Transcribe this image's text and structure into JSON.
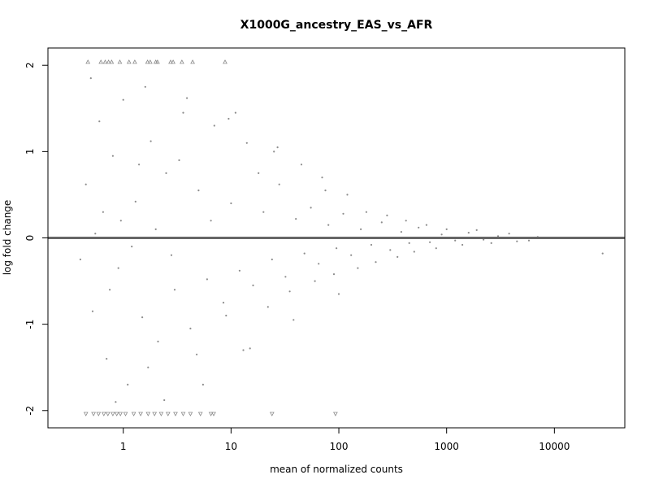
{
  "chart_data": {
    "type": "scatter",
    "title": "X1000G_ancestry_EAS_vs_AFR",
    "xlabel": "mean of normalized counts",
    "ylabel": "log fold change",
    "x_scale": "log",
    "xlim": [
      0.2,
      45000
    ],
    "ylim": [
      -2.2,
      2.2
    ],
    "x_ticks": [
      {
        "value": 1,
        "label": "1"
      },
      {
        "value": 10,
        "label": "10"
      },
      {
        "value": 100,
        "label": "100"
      },
      {
        "value": 1000,
        "label": "1000"
      },
      {
        "value": 10000,
        "label": "10000"
      }
    ],
    "y_ticks": [
      {
        "value": -2,
        "label": "-2"
      },
      {
        "value": -1,
        "label": "-1"
      },
      {
        "value": 0,
        "label": "0"
      },
      {
        "value": 1,
        "label": "1"
      },
      {
        "value": 2,
        "label": "2"
      }
    ],
    "reference_line": {
      "y": 0
    },
    "grid": false,
    "legend": "none",
    "colors": {
      "points": "#8c8c8c",
      "reference_line": "#666666",
      "axes": "#000000"
    },
    "clipped_points_note": "points beyond the y-range are drawn as triangles at the plot edge",
    "series": [
      {
        "points": [
          [
            0.45,
            0.62
          ],
          [
            0.52,
            -0.85
          ],
          [
            0.6,
            1.35
          ],
          [
            0.7,
            -1.4
          ],
          [
            0.8,
            0.95
          ],
          [
            0.9,
            -0.35
          ],
          [
            1.0,
            1.6
          ],
          [
            1.1,
            -1.7
          ],
          [
            1.3,
            0.42
          ],
          [
            1.5,
            -0.92
          ],
          [
            1.8,
            1.12
          ],
          [
            2.1,
            -1.2
          ],
          [
            2.5,
            0.75
          ],
          [
            3.0,
            -0.6
          ],
          [
            3.6,
            1.45
          ],
          [
            4.2,
            -1.05
          ],
          [
            5.0,
            0.55
          ],
          [
            6.0,
            -0.48
          ],
          [
            7.0,
            1.3
          ],
          [
            8.5,
            -0.75
          ],
          [
            10,
            0.4
          ],
          [
            12,
            -0.38
          ],
          [
            14,
            1.1
          ],
          [
            16,
            -0.55
          ],
          [
            20,
            0.3
          ],
          [
            24,
            -0.25
          ],
          [
            28,
            0.62
          ],
          [
            32,
            -0.45
          ],
          [
            40,
            0.22
          ],
          [
            48,
            -0.18
          ],
          [
            55,
            0.35
          ],
          [
            65,
            -0.3
          ],
          [
            80,
            0.15
          ],
          [
            95,
            -0.12
          ],
          [
            110,
            0.28
          ],
          [
            130,
            -0.2
          ],
          [
            160,
            0.1
          ],
          [
            200,
            -0.08
          ],
          [
            250,
            0.18
          ],
          [
            300,
            -0.14
          ],
          [
            380,
            0.07
          ],
          [
            450,
            -0.06
          ],
          [
            550,
            0.12
          ],
          [
            700,
            -0.05
          ],
          [
            900,
            0.04
          ],
          [
            1200,
            -0.03
          ],
          [
            1600,
            0.06
          ],
          [
            2200,
            -0.02
          ],
          [
            3000,
            0.02
          ],
          [
            4500,
            -0.04
          ],
          [
            7000,
            0.01
          ],
          [
            28000,
            -0.18
          ],
          [
            0.4,
            -0.25
          ],
          [
            0.55,
            0.05
          ],
          [
            0.65,
            0.3
          ],
          [
            0.75,
            -0.6
          ],
          [
            0.95,
            0.2
          ],
          [
            1.2,
            -0.1
          ],
          [
            1.4,
            0.85
          ],
          [
            1.7,
            -1.5
          ],
          [
            2.0,
            0.1
          ],
          [
            2.8,
            -0.2
          ],
          [
            3.3,
            0.9
          ],
          [
            4.8,
            -1.35
          ],
          [
            6.5,
            0.2
          ],
          [
            9.0,
            -0.9
          ],
          [
            11,
            1.45
          ],
          [
            13,
            -1.3
          ],
          [
            18,
            0.75
          ],
          [
            22,
            -0.8
          ],
          [
            27,
            1.05
          ],
          [
            35,
            -0.62
          ],
          [
            45,
            0.85
          ],
          [
            60,
            -0.5
          ],
          [
            75,
            0.55
          ],
          [
            90,
            -0.42
          ],
          [
            120,
            0.5
          ],
          [
            150,
            -0.35
          ],
          [
            180,
            0.3
          ],
          [
            220,
            -0.28
          ],
          [
            280,
            0.26
          ],
          [
            350,
            -0.22
          ],
          [
            420,
            0.2
          ],
          [
            500,
            -0.16
          ],
          [
            650,
            0.15
          ],
          [
            800,
            -0.12
          ],
          [
            1000,
            0.1
          ],
          [
            1400,
            -0.08
          ],
          [
            1900,
            0.09
          ],
          [
            2600,
            -0.06
          ],
          [
            3800,
            0.05
          ],
          [
            5800,
            -0.03
          ],
          [
            0.5,
            1.85
          ],
          [
            0.85,
            -1.9
          ],
          [
            1.6,
            1.75
          ],
          [
            2.4,
            -1.88
          ],
          [
            3.9,
            1.62
          ],
          [
            5.5,
            -1.7
          ],
          [
            9.5,
            1.38
          ],
          [
            15,
            -1.28
          ],
          [
            25,
            1.0
          ],
          [
            38,
            -0.95
          ],
          [
            70,
            0.7
          ],
          [
            100,
            -0.65
          ]
        ],
        "clipped_high": [
          0.47,
          0.62,
          0.68,
          0.73,
          0.78,
          0.93,
          1.13,
          1.28,
          1.68,
          1.78,
          2.0,
          2.08,
          2.75,
          2.9,
          3.5,
          4.4,
          8.8
        ],
        "clipped_low": [
          0.45,
          0.53,
          0.59,
          0.66,
          0.72,
          0.8,
          0.87,
          0.94,
          1.05,
          1.25,
          1.45,
          1.7,
          1.95,
          2.25,
          2.6,
          3.05,
          3.6,
          4.2,
          5.2,
          6.5,
          6.9,
          24,
          93
        ]
      }
    ]
  }
}
